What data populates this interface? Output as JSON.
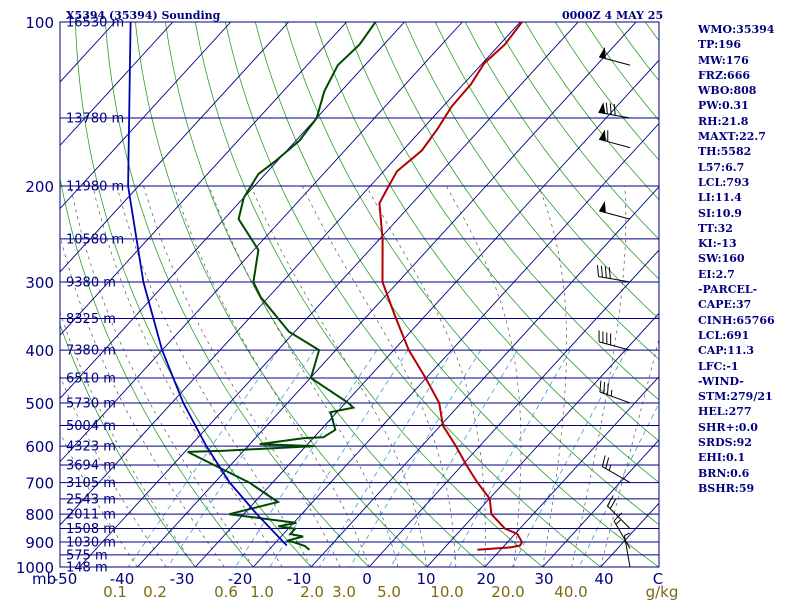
{
  "header": {
    "title": "X5394 (35394) Sounding",
    "datetime": "0000Z  4 MAY 25"
  },
  "colors": {
    "frame": "#000080",
    "isobar": "#000080",
    "isotherm": "#000080",
    "dry_adiabat": "#2aa02a",
    "moist_adiabat": "#555555",
    "mixing_ratio": "#3a9bd0",
    "temperature": "#b40000",
    "dewpoint": "#004800",
    "parcel": "#0000b0",
    "axis_mr": "#7a6a10"
  },
  "stats": [
    "WMO:35394",
    "TP:196",
    "MW:176",
    "FRZ:666",
    "WBO:808",
    "PW:0.31",
    "RH:21.8",
    "MAXT:22.7",
    "TH:5582",
    "L57:6.7",
    "LCL:793",
    "LI:11.4",
    "SI:10.9",
    "TT:32",
    "KI:-13",
    "SW:160",
    "EI:2.7",
    "-PARCEL-",
    "CAPE:37",
    "CINH:65766",
    "LCL:691",
    "CAP:11.3",
    "LFC:-1",
    "-WIND-",
    "STM:279/21",
    "HEL:277",
    "SHR+:0.0",
    "SRDS:92",
    "EHI:0.1",
    "BRN:0.6",
    "BSHR:59"
  ],
  "chart_data": {
    "type": "skew-t",
    "pressure_axis_label": "mb",
    "pressure_levels": [
      100,
      200,
      300,
      400,
      500,
      600,
      700,
      800,
      900,
      1000
    ],
    "ylim": [
      1000,
      100
    ],
    "xlim_temp_c": [
      -50,
      50
    ],
    "temperature_ticks": [
      "-50",
      "-40",
      "-30",
      "-20",
      "-10",
      "0",
      "10",
      "20",
      "30",
      "40",
      "C"
    ],
    "mixing_ratio_axis_label": "g/kg",
    "mixing_ratio_ticks": [
      "0.1",
      "0.2",
      "0.6",
      "1.0",
      "2.0",
      "3.0",
      "5.0",
      "10.0",
      "20.0",
      "40.0"
    ],
    "height_labels": [
      {
        "p": 100,
        "label": "16530 m"
      },
      {
        "p": 150,
        "label": "13780 m"
      },
      {
        "p": 200,
        "label": "11980 m"
      },
      {
        "p": 250,
        "label": "10580 m"
      },
      {
        "p": 300,
        "label": "9380 m"
      },
      {
        "p": 350,
        "label": "8325 m"
      },
      {
        "p": 400,
        "label": "7380 m"
      },
      {
        "p": 450,
        "label": "6510 m"
      },
      {
        "p": 500,
        "label": "5730 m"
      },
      {
        "p": 550,
        "label": "5004 m"
      },
      {
        "p": 600,
        "label": "4323 m"
      },
      {
        "p": 650,
        "label": "3694 m"
      },
      {
        "p": 700,
        "label": "3105 m"
      },
      {
        "p": 750,
        "label": "2543 m"
      },
      {
        "p": 800,
        "label": "2011 m"
      },
      {
        "p": 850,
        "label": "1508 m"
      },
      {
        "p": 900,
        "label": "1030 m"
      },
      {
        "p": 950,
        "label": "575 m"
      },
      {
        "p": 1000,
        "label": "148 m"
      }
    ],
    "series": [
      {
        "key": "temperature",
        "points": [
          [
            100,
            -59.7
          ],
          [
            110,
            -59.1
          ],
          [
            119,
            -59.7
          ],
          [
            130,
            -58.7
          ],
          [
            143,
            -58.5
          ],
          [
            157,
            -57.4
          ],
          [
            172,
            -56.7
          ],
          [
            188,
            -57.7
          ],
          [
            200,
            -56.8
          ],
          [
            215,
            -55.7
          ],
          [
            250,
            -49.5
          ],
          [
            300,
            -42.7
          ],
          [
            330,
            -37.7
          ],
          [
            350,
            -34.6
          ],
          [
            400,
            -27.4
          ],
          [
            450,
            -20.1
          ],
          [
            500,
            -13.8
          ],
          [
            550,
            -9.6
          ],
          [
            600,
            -4.1
          ],
          [
            650,
            0.7
          ],
          [
            700,
            5.4
          ],
          [
            750,
            10.1
          ],
          [
            800,
            12.8
          ],
          [
            850,
            17.4
          ],
          [
            870,
            20.4
          ],
          [
            900,
            22.5
          ],
          [
            913,
            22.7
          ],
          [
            920,
            21.5
          ],
          [
            930,
            16.0
          ]
        ]
      },
      {
        "key": "dewpoint",
        "points": [
          [
            100,
            -85.0
          ],
          [
            110,
            -84.2
          ],
          [
            120,
            -84.7
          ],
          [
            134,
            -82.9
          ],
          [
            150,
            -80.0
          ],
          [
            165,
            -79.4
          ],
          [
            180,
            -80.3
          ],
          [
            190,
            -81.2
          ],
          [
            210,
            -80.0
          ],
          [
            230,
            -77.5
          ],
          [
            262,
            -69.2
          ],
          [
            300,
            -65.0
          ],
          [
            320,
            -61.3
          ],
          [
            370,
            -51.0
          ],
          [
            400,
            -42.9
          ],
          [
            450,
            -39.9
          ],
          [
            500,
            -29.5
          ],
          [
            510,
            -27.9
          ],
          [
            520,
            -31.1
          ],
          [
            560,
            -27.5
          ],
          [
            578,
            -28.4
          ],
          [
            580,
            -31.6
          ],
          [
            595,
            -38.3
          ],
          [
            600,
            -28.6
          ],
          [
            612,
            -43.4
          ],
          [
            615,
            -49.5
          ],
          [
            700,
            -34.0
          ],
          [
            760,
            -26.0
          ],
          [
            800,
            -32.5
          ],
          [
            830,
            -19.5
          ],
          [
            842,
            -22.1
          ],
          [
            851,
            -18.8
          ],
          [
            870,
            -18.8
          ],
          [
            879,
            -16.2
          ],
          [
            895,
            -18.3
          ],
          [
            900,
            -17.0
          ],
          [
            915,
            -14.4
          ],
          [
            930,
            -13.0
          ]
        ]
      },
      {
        "key": "parcel",
        "points": [
          [
            100,
            -127.3
          ],
          [
            200,
            -101.8
          ],
          [
            300,
            -84.0
          ],
          [
            400,
            -70.0
          ],
          [
            500,
            -58.0
          ],
          [
            600,
            -47.2
          ],
          [
            700,
            -37.4
          ],
          [
            800,
            -27.7
          ],
          [
            900,
            -18.7
          ],
          [
            913,
            -17.6
          ]
        ]
      }
    ],
    "wind_barbs": [
      {
        "p": 120,
        "dir": 285,
        "speed": 50
      },
      {
        "p": 150,
        "dir": 280,
        "speed": 80
      },
      {
        "p": 170,
        "dir": 285,
        "speed": 60
      },
      {
        "p": 230,
        "dir": 285,
        "speed": 50
      },
      {
        "p": 300,
        "dir": 280,
        "speed": 40
      },
      {
        "p": 400,
        "dir": 285,
        "speed": 40
      },
      {
        "p": 500,
        "dir": 290,
        "speed": 35
      },
      {
        "p": 700,
        "dir": 300,
        "speed": 25
      },
      {
        "p": 850,
        "dir": 315,
        "speed": 20
      },
      {
        "p": 925,
        "dir": 330,
        "speed": 15
      },
      {
        "p": 1000,
        "dir": 350,
        "speed": 5
      }
    ]
  }
}
